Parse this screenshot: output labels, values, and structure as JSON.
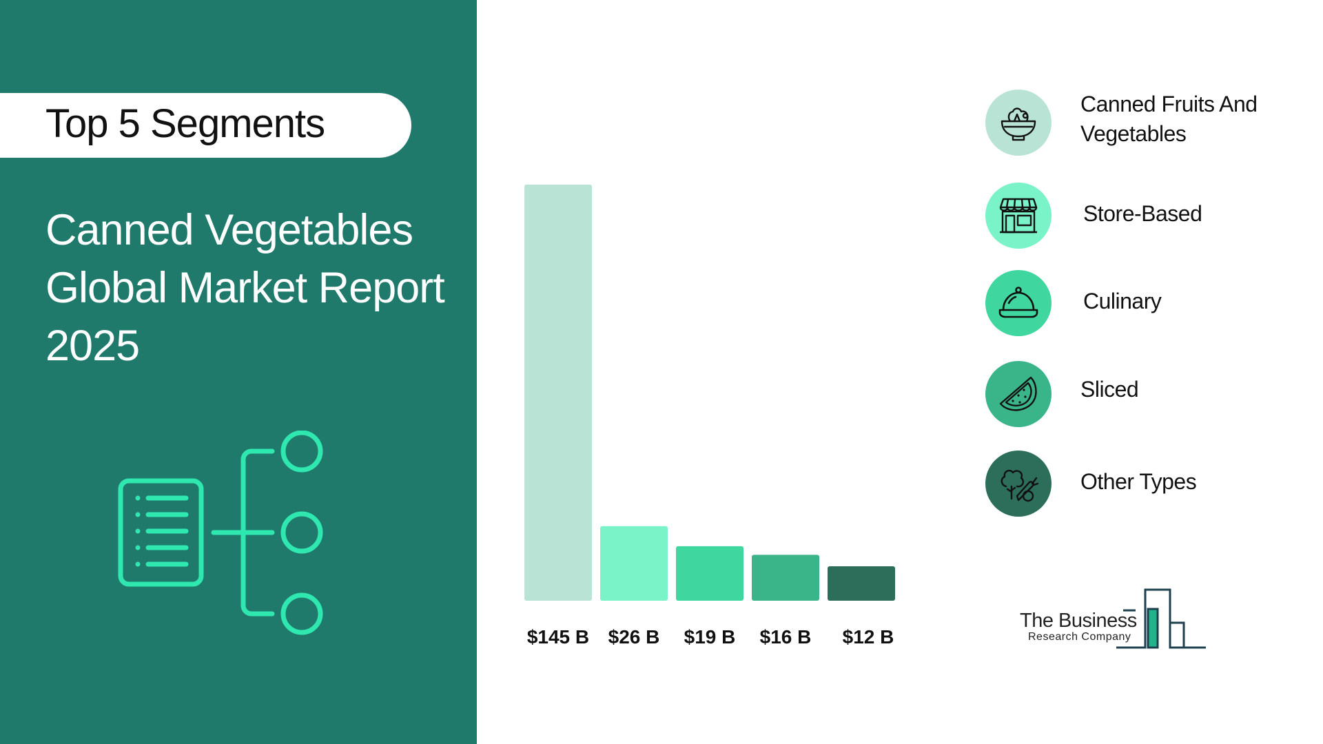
{
  "header": {
    "pill_label": "Top 5 Segments",
    "title_lines": [
      "Canned Vegetables",
      "Global Market Report",
      "2025"
    ]
  },
  "chart_data": {
    "type": "bar",
    "categories": [
      "Canned Fruits And Vegetables",
      "Store-Based",
      "Culinary",
      "Sliced",
      "Other Types"
    ],
    "values": [
      145,
      26,
      19,
      16,
      12
    ],
    "value_labels": [
      "$145 B",
      "$26 B",
      "$19 B",
      "$16 B",
      "$12 B"
    ],
    "colors": [
      "#b9e3d5",
      "#79f3c7",
      "#3fd6a0",
      "#3ab489",
      "#2c6e5a"
    ],
    "ylim": [
      0,
      145
    ],
    "grid": false
  },
  "legend": [
    {
      "label": "Canned Fruits And Vegetables",
      "icon": "salad-bowl-icon",
      "color": "#b9e3d5"
    },
    {
      "label": "Store-Based",
      "icon": "storefront-icon",
      "color": "#79f3c7"
    },
    {
      "label": "Culinary",
      "icon": "food-cloche-icon",
      "color": "#3fd6a0"
    },
    {
      "label": "Sliced",
      "icon": "watermelon-slice-icon",
      "color": "#3ab489"
    },
    {
      "label": "Other Types",
      "icon": "vegetables-icon",
      "color": "#2c6e5a"
    }
  ],
  "logo": {
    "line1": "The Business",
    "line2": "Research Company"
  },
  "colors": {
    "panel": "#1f7a6c",
    "accent": "#2ee8b0"
  }
}
